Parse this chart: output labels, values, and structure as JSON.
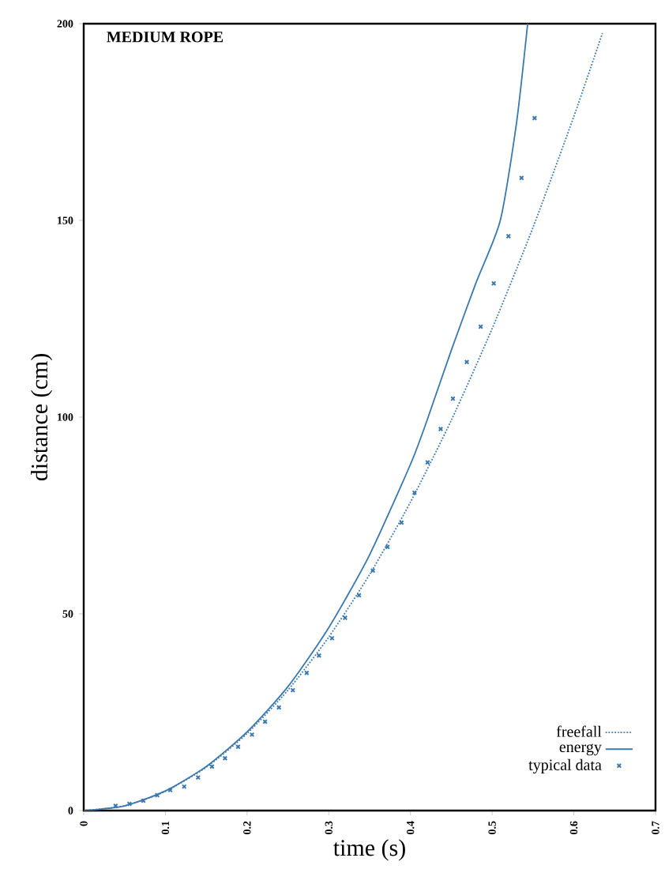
{
  "chart_data": {
    "type": "line",
    "title": "MEDIUM ROPE",
    "xlabel": "time (s)",
    "ylabel": "distance (cm)",
    "xlim": [
      0,
      0.7
    ],
    "ylim": [
      0,
      200
    ],
    "xticks": [
      0,
      0.1,
      0.2,
      0.3,
      0.4,
      0.5,
      0.6,
      0.7
    ],
    "yticks": [
      0,
      50,
      100,
      150,
      200
    ],
    "grid": false,
    "legend": "bottom right",
    "series": [
      {
        "name": "freefall",
        "line_style": "dotted",
        "marker": "none",
        "color": "#3a78b0",
        "x": [
          0,
          0.05,
          0.1,
          0.15,
          0.2,
          0.25,
          0.3,
          0.35,
          0.4,
          0.45,
          0.5,
          0.55,
          0.6,
          0.635
        ],
        "values": [
          0,
          1.2,
          4.9,
          11,
          19.6,
          30.6,
          44.1,
          60,
          78.4,
          99.2,
          122.5,
          148.2,
          176.4,
          197.6
        ]
      },
      {
        "name": "energy",
        "line_style": "solid",
        "marker": "none",
        "color": "#3a78b0",
        "x": [
          0,
          0.05,
          0.1,
          0.15,
          0.2,
          0.25,
          0.3,
          0.35,
          0.4,
          0.42,
          0.45,
          0.48,
          0.51,
          0.53,
          0.5435
        ],
        "values": [
          0,
          1.2,
          5,
          11.2,
          20,
          31.5,
          46.5,
          65,
          88,
          99,
          117,
          134,
          150,
          175,
          200
        ]
      },
      {
        "name": "typical data",
        "type": "scatter",
        "marker": "cross",
        "color": "#3a78b0",
        "x": [
          0.039,
          0.056,
          0.073,
          0.09,
          0.106,
          0.123,
          0.14,
          0.157,
          0.173,
          0.189,
          0.206,
          0.222,
          0.239,
          0.256,
          0.273,
          0.288,
          0.304,
          0.32,
          0.337,
          0.354,
          0.372,
          0.389,
          0.405,
          0.421,
          0.437,
          0.452,
          0.469,
          0.486,
          0.502,
          0.52,
          0.536,
          0.552
        ],
        "values": [
          1.2,
          1.7,
          2.5,
          3.9,
          5.2,
          6.1,
          8.4,
          11.2,
          13.3,
          16.2,
          19.3,
          22.6,
          26.2,
          30.6,
          35,
          39.4,
          43.8,
          49,
          54.7,
          61,
          67,
          73.2,
          80.8,
          88.5,
          97,
          104.7,
          114,
          123,
          134,
          146,
          160.8,
          176
        ]
      }
    ]
  }
}
